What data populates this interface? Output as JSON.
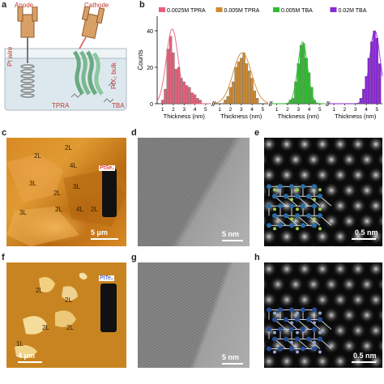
{
  "panels": {
    "a": {
      "label": "a",
      "anode": "Anode",
      "cathode": "Cathode",
      "pt_wire": "Pt wire",
      "ptx2_bulk": "PtX₂ bulk",
      "tpra": "TPRA",
      "tba": "TBA"
    },
    "b": {
      "label": "b"
    },
    "c": {
      "label": "c",
      "vial_label": "PtSe₂",
      "scale_bar": "5 μm",
      "layer_labels": [
        "2L",
        "2L",
        "4L",
        "3L",
        "2L",
        "3L",
        "4L",
        "2L",
        "2L",
        "3L"
      ]
    },
    "d": {
      "label": "d",
      "scale_bar": "5 nm"
    },
    "e": {
      "label": "e",
      "scale_bar": "0.5 nm"
    },
    "f": {
      "label": "f",
      "vial_label": "PtTe₂",
      "scale_bar": "4 μm",
      "layer_labels": [
        "2L",
        "2L",
        "2L",
        "2L",
        "1L"
      ]
    },
    "g": {
      "label": "g",
      "scale_bar": "5 nm"
    },
    "h": {
      "label": "h",
      "scale_bar": "0.5 nm"
    }
  },
  "chart_data": {
    "type": "bar",
    "ylabel": "Counts",
    "ylim": [
      0,
      48
    ],
    "yticks": [
      0,
      20,
      40
    ],
    "xlabel": "Thickness (nm)",
    "xticks": [
      "1",
      "2",
      "3",
      "4",
      "5"
    ],
    "xlim": [
      0.5,
      5.5
    ],
    "legend_position": "top",
    "series": [
      {
        "name": "0.0025M TPRA",
        "color": "#e8607a",
        "x": [
          1.0,
          1.25,
          1.5,
          1.75,
          2.0,
          2.25,
          2.5,
          2.75,
          3.0,
          3.25,
          3.5,
          3.75,
          4.0,
          4.25,
          4.5
        ],
        "values": [
          2,
          8,
          30,
          37,
          28,
          19,
          20,
          14,
          12,
          10,
          9,
          6,
          5,
          3,
          2
        ],
        "fit_center": 1.9,
        "fit_width": 0.55,
        "fit_peak": 41
      },
      {
        "name": "0.005M TPRA",
        "color": "#d08a2e",
        "x": [
          1.5,
          1.75,
          2.0,
          2.25,
          2.5,
          2.75,
          3.0,
          3.25,
          3.5,
          3.75,
          4.0,
          4.25,
          4.5
        ],
        "values": [
          2,
          4,
          9,
          12,
          20,
          23,
          25,
          28,
          22,
          18,
          14,
          7,
          3
        ],
        "fit_center": 3.1,
        "fit_width": 0.85,
        "fit_peak": 28
      },
      {
        "name": "0.005M TBA",
        "color": "#2ec02e",
        "x": [
          2.25,
          2.5,
          2.75,
          3.0,
          3.25,
          3.5,
          3.75,
          4.0,
          4.25,
          4.5
        ],
        "values": [
          2,
          3,
          12,
          22,
          32,
          33,
          25,
          17,
          9,
          2
        ],
        "fit_center": 3.4,
        "fit_width": 0.45,
        "fit_peak": 34
      },
      {
        "name": "0.02M TBA",
        "color": "#8a28d6",
        "x": [
          3.5,
          3.75,
          4.0,
          4.25,
          4.5,
          4.75,
          5.0,
          5.25
        ],
        "values": [
          3,
          8,
          15,
          25,
          34,
          40,
          36,
          22
        ],
        "fit_center": 4.8,
        "fit_width": 0.5,
        "fit_peak": 40
      }
    ]
  }
}
